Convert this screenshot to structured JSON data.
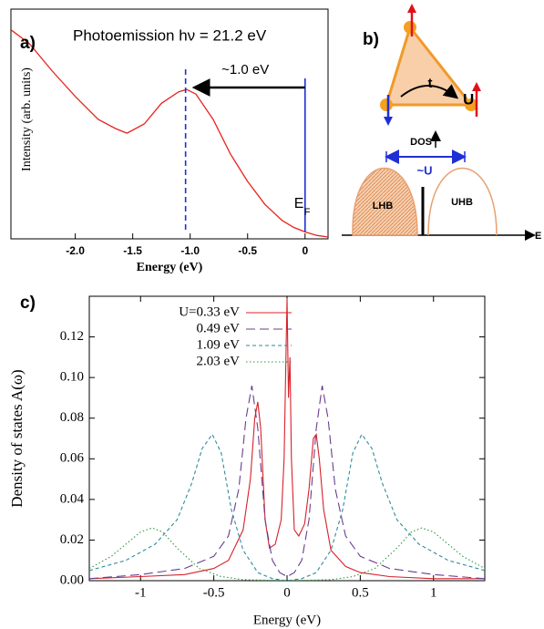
{
  "chart_data": [
    {
      "type": "line",
      "panel": "a)",
      "title": "Photoemission hν = 21.2 eV",
      "gap_label": "~1.0 eV",
      "fermi_label": "E",
      "fermi_sub": "F",
      "xlabel": "Energy (eV)",
      "ylabel": "Intensity (arb. units)",
      "x": [
        -2.56,
        -2.4,
        -2.2,
        -2.0,
        -1.8,
        -1.65,
        -1.55,
        -1.4,
        -1.25,
        -1.1,
        -1.03,
        -0.95,
        -0.8,
        -0.65,
        -0.5,
        -0.35,
        -0.2,
        -0.1,
        0,
        0.1,
        0.2
      ],
      "values": [
        0.91,
        0.85,
        0.73,
        0.62,
        0.52,
        0.48,
        0.46,
        0.5,
        0.59,
        0.64,
        0.65,
        0.63,
        0.52,
        0.37,
        0.25,
        0.15,
        0.08,
        0.05,
        0.03,
        0.015,
        0.008
      ],
      "color": "#e8231f",
      "vlines": [
        -1.04,
        0
      ],
      "vline_color": "#1f2fd6",
      "xlim": [
        -2.56,
        0.2
      ],
      "ylim": [
        0,
        1
      ],
      "xticks": [
        {
          "value": -2,
          "label": "-2.0"
        },
        {
          "value": -1.5,
          "label": "-1.5"
        },
        {
          "value": -1,
          "label": "-1.0"
        },
        {
          "value": -0.5,
          "label": "-0.5"
        },
        0
      ]
    },
    {
      "type": "line",
      "panel": "c)",
      "xlabel": "Energy (eV)",
      "ylabel": "Density of states A(ω)",
      "legend": "upper left",
      "xlim": [
        -1.35,
        1.35
      ],
      "ylim": [
        0,
        0.14
      ],
      "xticks": [
        -1,
        -0.5,
        0,
        0.5,
        1
      ],
      "yticks": [
        {
          "value": 0,
          "label": "0.00"
        },
        {
          "value": 0.02,
          "label": "0.02"
        },
        {
          "value": 0.04,
          "label": "0.04"
        },
        {
          "value": 0.06,
          "label": "0.06"
        },
        {
          "value": 0.08,
          "label": "0.08"
        },
        {
          "value": 0.1,
          "label": "0.10"
        },
        {
          "value": 0.12,
          "label": "0.12"
        }
      ],
      "series": [
        {
          "name": "U=0.33 eV",
          "color": "#d8202a",
          "style": "solid",
          "x": [
            -1.35,
            -1.0,
            -0.7,
            -0.5,
            -0.4,
            -0.3,
            -0.25,
            -0.22,
            -0.2,
            -0.18,
            -0.15,
            -0.12,
            -0.08,
            -0.04,
            -0.02,
            -0.01,
            0,
            0.01,
            0.02,
            0.03,
            0.05,
            0.08,
            0.12,
            0.15,
            0.18,
            0.2,
            0.22,
            0.25,
            0.3,
            0.4,
            0.5,
            0.7,
            1.0,
            1.35
          ],
          "values": [
            0.001,
            0.002,
            0.003,
            0.006,
            0.01,
            0.025,
            0.05,
            0.08,
            0.088,
            0.075,
            0.03,
            0.016,
            0.018,
            0.03,
            0.06,
            0.1,
            0.139,
            0.09,
            0.11,
            0.06,
            0.025,
            0.022,
            0.028,
            0.045,
            0.07,
            0.072,
            0.06,
            0.035,
            0.015,
            0.007,
            0.004,
            0.002,
            0.001,
            0.001
          ]
        },
        {
          "name": "0.49 eV",
          "color": "#6a3d8f",
          "style": "dashed",
          "x": [
            -1.35,
            -1.0,
            -0.7,
            -0.5,
            -0.4,
            -0.33,
            -0.28,
            -0.24,
            -0.2,
            -0.15,
            -0.1,
            -0.05,
            0,
            0.05,
            0.1,
            0.15,
            0.2,
            0.24,
            0.28,
            0.33,
            0.4,
            0.5,
            0.7,
            1.0,
            1.35
          ],
          "values": [
            0.001,
            0.003,
            0.006,
            0.012,
            0.022,
            0.045,
            0.08,
            0.096,
            0.075,
            0.03,
            0.01,
            0.004,
            0.002,
            0.004,
            0.01,
            0.03,
            0.075,
            0.096,
            0.08,
            0.045,
            0.022,
            0.012,
            0.006,
            0.003,
            0.001
          ]
        },
        {
          "name": "1.09 eV",
          "color": "#2f8a9e",
          "style": "short-dashed",
          "x": [
            -1.35,
            -1.1,
            -0.9,
            -0.75,
            -0.65,
            -0.58,
            -0.51,
            -0.45,
            -0.38,
            -0.3,
            -0.2,
            -0.1,
            0,
            0.1,
            0.2,
            0.3,
            0.38,
            0.45,
            0.51,
            0.58,
            0.65,
            0.75,
            0.9,
            1.1,
            1.35
          ],
          "values": [
            0.005,
            0.01,
            0.018,
            0.03,
            0.048,
            0.065,
            0.072,
            0.063,
            0.035,
            0.015,
            0.004,
            0.001,
            0,
            0.001,
            0.004,
            0.015,
            0.035,
            0.063,
            0.072,
            0.065,
            0.048,
            0.03,
            0.018,
            0.01,
            0.005
          ]
        },
        {
          "name": "2.03 eV",
          "color": "#2e9a3a",
          "style": "dotted",
          "x": [
            -1.35,
            -1.2,
            -1.1,
            -1.0,
            -0.92,
            -0.85,
            -0.75,
            -0.6,
            -0.45,
            -0.3,
            0,
            0.3,
            0.45,
            0.6,
            0.75,
            0.85,
            0.92,
            1.0,
            1.1,
            1.2,
            1.35
          ],
          "values": [
            0.006,
            0.012,
            0.018,
            0.024,
            0.026,
            0.024,
            0.016,
            0.006,
            0.002,
            0.0005,
            0,
            0.0005,
            0.002,
            0.006,
            0.016,
            0.024,
            0.026,
            0.024,
            0.018,
            0.012,
            0.006
          ]
        }
      ]
    }
  ],
  "diagram": {
    "panel": "b)",
    "hopping": "t",
    "interaction": "U",
    "dos": "DOS",
    "gap": "~U",
    "lower_band": "LHB",
    "upper_band": "UHB",
    "energy": "E"
  }
}
